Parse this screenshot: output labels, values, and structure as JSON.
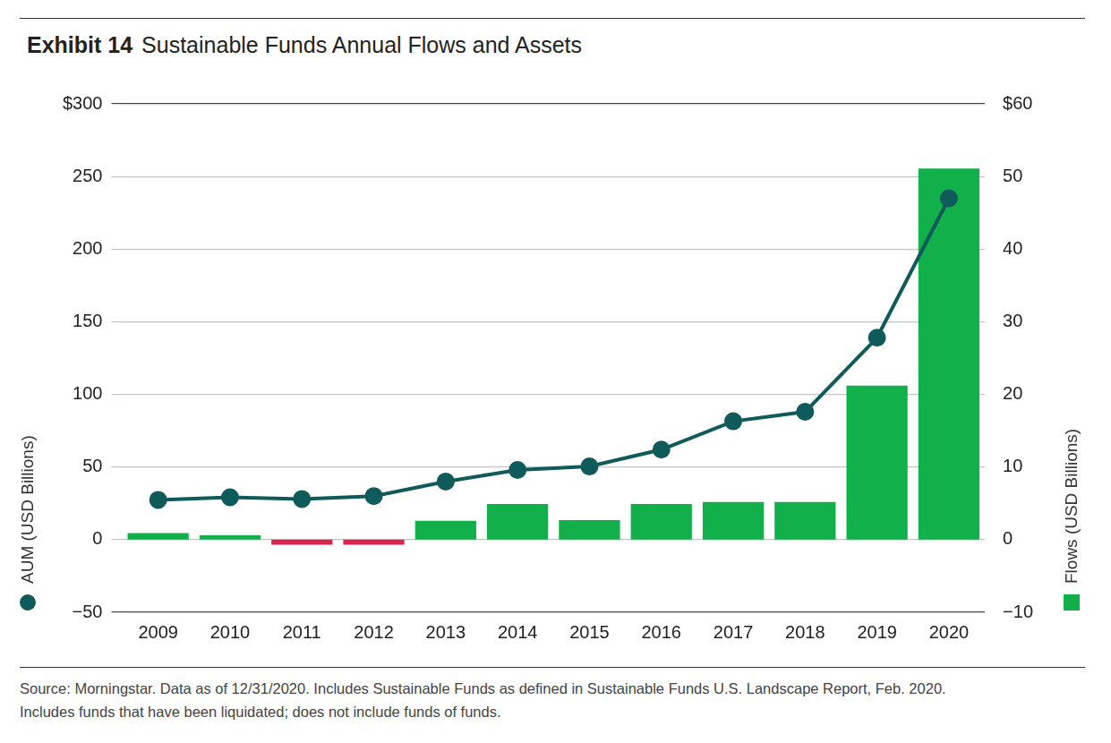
{
  "chart_data": {
    "type": "bar",
    "title": "Exhibit 14",
    "subtitle": "Sustainable Funds Annual Flows and Assets",
    "footnote": [
      "Source: Morningstar. Data as of 12/31/2020. Includes Sustainable Funds as defined in Sustainable Funds U.S. Landscape Report, Feb. 2020.",
      "Includes funds that have been liquidated; does not include funds of funds."
    ],
    "categories": [
      "2009",
      "2010",
      "2011",
      "2012",
      "2013",
      "2014",
      "2015",
      "2016",
      "2017",
      "2018",
      "2019",
      "2020"
    ],
    "series": [
      {
        "name": "Flows (USD Billions)",
        "type": "bar",
        "axis": "y2",
        "marker": "square",
        "colors": [
          "#12b04b",
          "#12b04b",
          "#e0234e",
          "#e0234e",
          "#12b04b",
          "#12b04b",
          "#12b04b",
          "#12b04b",
          "#12b04b",
          "#12b04b",
          "#12b04b",
          "#12b04b"
        ],
        "values": [
          0.9,
          0.6,
          -0.7,
          -0.7,
          2.6,
          4.9,
          2.7,
          4.9,
          5.2,
          5.2,
          21.2,
          51.1
        ]
      },
      {
        "name": "AUM (USD Billions)",
        "type": "line",
        "axis": "y",
        "marker": "circle",
        "color": "#0f5a5a",
        "values": [
          27.4,
          29.2,
          28,
          30,
          40,
          48,
          50.4,
          62,
          81.5,
          88,
          139,
          235
        ]
      }
    ],
    "ylim": [
      -50,
      300
    ],
    "yticks": [
      {
        "value": -50,
        "label": "−50"
      },
      0,
      50,
      100,
      150,
      200,
      250,
      {
        "value": 300,
        "label": "$300"
      }
    ],
    "y2lim": [
      -10,
      60
    ],
    "y2ticks": [
      {
        "value": -10,
        "label": "−10"
      },
      0,
      10,
      20,
      30,
      40,
      50,
      {
        "value": 60,
        "label": "$60"
      }
    ],
    "grid": true
  }
}
